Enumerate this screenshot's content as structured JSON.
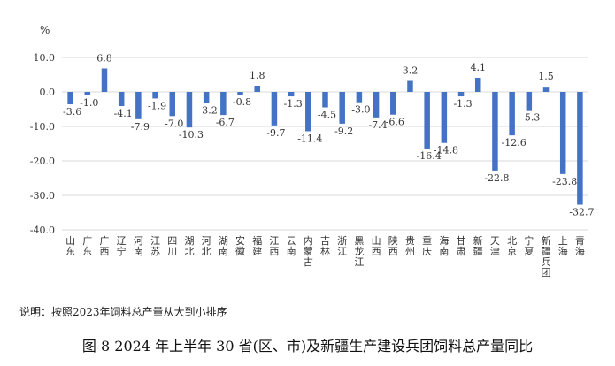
{
  "chart_data": {
    "type": "bar",
    "ylabel": "%",
    "ylim": [
      -40,
      10
    ],
    "yticks": [
      10,
      0,
      -10,
      -20,
      -30,
      -40
    ],
    "ytick_labels": [
      "10.0",
      "0.0",
      "-10.0",
      "-20.0",
      "-30.0",
      "-40.0"
    ],
    "grid": true,
    "bar_color": "#4472C4",
    "categories": [
      "山东",
      "广东",
      "广西",
      "辽宁",
      "河南",
      "江苏",
      "四川",
      "湖北",
      "河北",
      "湖南",
      "安徽",
      "福建",
      "江西",
      "云南",
      "内蒙古",
      "吉林",
      "浙江",
      "黑龙江",
      "山西",
      "陕西",
      "贵州",
      "重庆",
      "海南",
      "甘肃",
      "新疆",
      "天津",
      "北京",
      "宁夏",
      "新疆兵团",
      "上海",
      "青海"
    ],
    "values": [
      -3.6,
      -1.0,
      6.8,
      -4.1,
      -7.9,
      -1.9,
      -7.0,
      -10.3,
      -3.2,
      -6.7,
      -0.8,
      1.8,
      -9.7,
      -1.3,
      -11.4,
      -4.5,
      -9.2,
      -3.0,
      -7.4,
      -6.6,
      3.2,
      -16.4,
      -14.8,
      -1.3,
      4.1,
      -22.8,
      -12.6,
      -5.3,
      1.5,
      -23.8,
      -32.7
    ],
    "data_labels": [
      "-3.6",
      "-1.0",
      "6.8",
      "-4.1",
      "-7.9",
      "-1.9",
      "-7.0",
      "-10.3",
      "-3.2",
      "-6.7",
      "-0.8",
      "1.8",
      "-9.7",
      "-1.3",
      "-11.4",
      "-4.5",
      "-9.2",
      "-3.0",
      "-7.4",
      "-6.6",
      "3.2",
      "-16.4",
      "-14.8",
      "-1.3",
      "4.1",
      "-22.8",
      "-12.6",
      "-5.3",
      "1.5",
      "-23.8",
      "-32.7"
    ]
  },
  "note": "说明：按照2023年饲料总产量从大到小排序",
  "caption": "图 8  2024 年上半年 30 省(区、市)及新疆生产建设兵团饲料总产量同比"
}
